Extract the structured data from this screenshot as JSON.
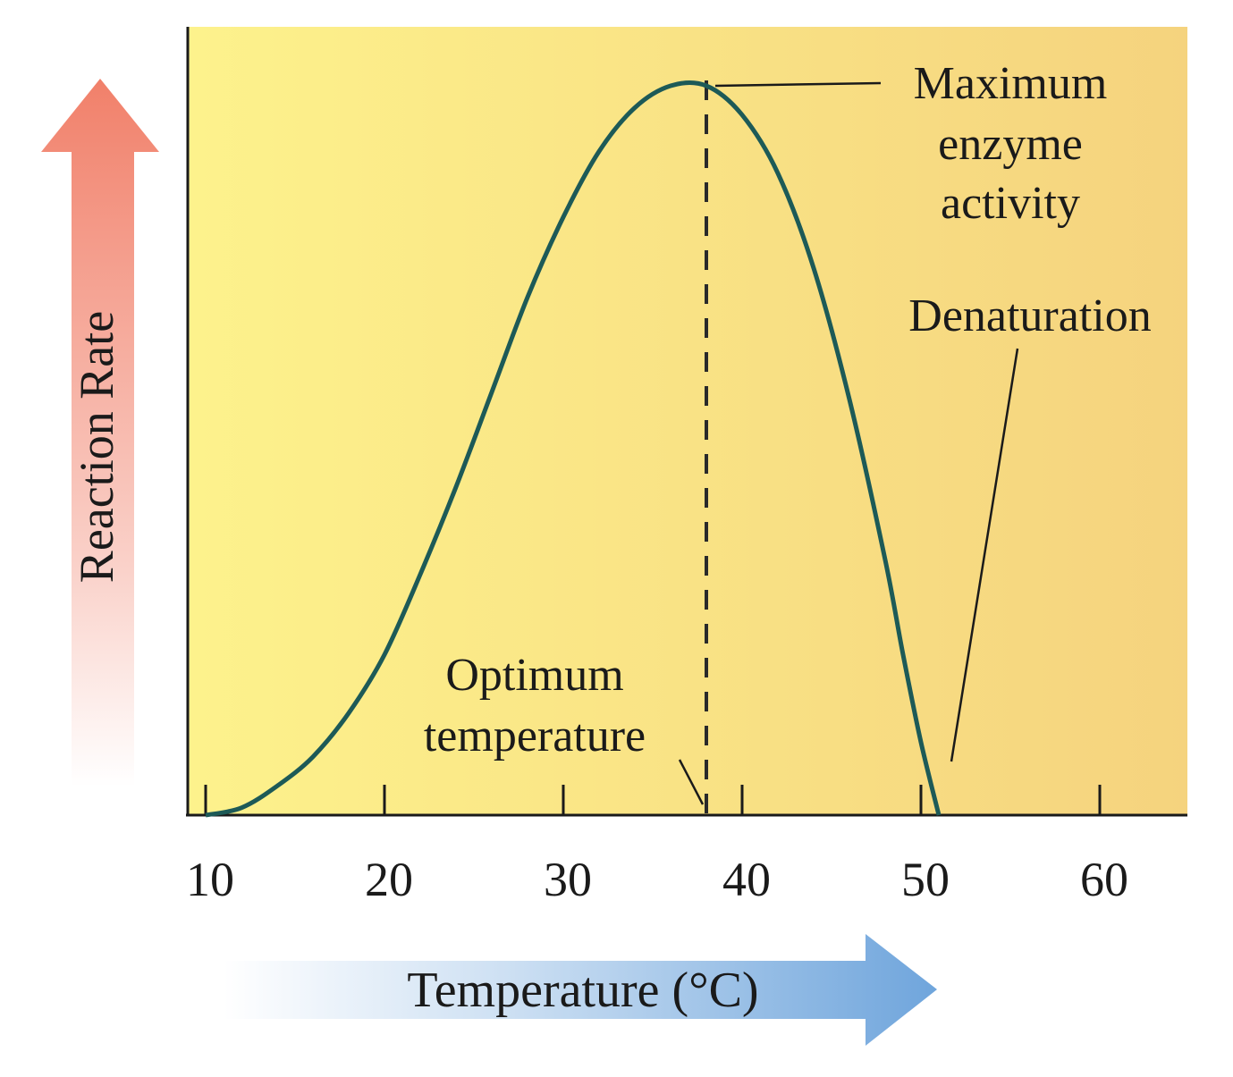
{
  "chart_data": {
    "type": "line",
    "xlabel": "Temperature (°C)",
    "ylabel": "Reaction Rate",
    "x_ticks": [
      "10",
      "20",
      "30",
      "40",
      "50",
      "60"
    ],
    "xlim": [
      9,
      64.8
    ],
    "ylim": [
      0,
      1
    ],
    "grid": false,
    "series": [
      {
        "x": [
          10,
          12,
          14,
          16,
          18,
          20,
          22,
          24,
          26,
          28,
          30,
          32,
          34,
          36,
          38,
          40,
          42,
          44,
          46,
          48,
          49,
          50,
          51
        ],
        "y": [
          0.0,
          0.01,
          0.04,
          0.08,
          0.14,
          0.22,
          0.33,
          0.45,
          0.58,
          0.71,
          0.82,
          0.91,
          0.97,
          1.0,
          1.0,
          0.96,
          0.88,
          0.75,
          0.57,
          0.35,
          0.22,
          0.1,
          0.0
        ]
      }
    ],
    "annotations": {
      "optimum_label": [
        "Optimum",
        "temperature"
      ],
      "optimum_x": 38,
      "maximum_label": [
        "Maximum",
        "enzyme",
        "activity"
      ],
      "denaturation_label": "Denaturation",
      "denaturation_x": 51
    },
    "colors": {
      "curve": "#1d5a57",
      "panel_light": "#fdf28c",
      "panel_dark": "#f5d37e",
      "y_arrow": "#f1806a",
      "x_arrow": "#6fa5dc"
    }
  }
}
